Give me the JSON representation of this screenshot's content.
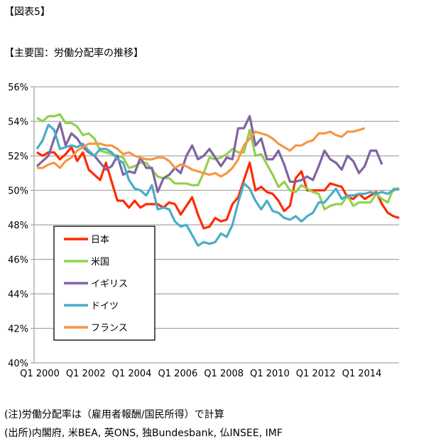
{
  "header": {
    "figure_label": "【図表5】",
    "subtitle": "【主要国：労働分配率の推移】"
  },
  "notes": {
    "note": "(注)労働分配率は（雇用者報酬/国民所得）で計算",
    "source": "(出所)内閣府, 米BEA, 英ONS, 独Bundesbank, 仏INSEE, IMF"
  },
  "chart_data": {
    "type": "line",
    "title": "主要国：労働分配率の推移",
    "xlabel": "",
    "ylabel": "",
    "ylim": [
      40,
      56
    ],
    "yticks": [
      "40%",
      "42%",
      "44%",
      "46%",
      "48%",
      "50%",
      "52%",
      "54%",
      "56%"
    ],
    "xticks": [
      "Q1 2000",
      "Q1 2002",
      "Q1 2004",
      "Q1 2006",
      "Q1 2008",
      "Q1 2010",
      "Q1 2012",
      "Q1 2014"
    ],
    "x_start": "Q1 2000",
    "x_step": "quarter",
    "grid": true,
    "legend_position": "lower-left",
    "series": [
      {
        "name": "日本",
        "color": "#ff2a00",
        "values": [
          52.2,
          52.0,
          52.2,
          52.2,
          51.8,
          52.1,
          52.5,
          51.7,
          52.2,
          51.2,
          50.9,
          50.6,
          51.6,
          50.5,
          49.4,
          49.4,
          49.0,
          49.4,
          49.0,
          49.2,
          49.2,
          49.2,
          49.0,
          49.3,
          49.2,
          48.6,
          49.1,
          49.6,
          48.6,
          47.8,
          47.9,
          48.4,
          48.2,
          48.3,
          49.2,
          49.6,
          50.6,
          51.6,
          50.0,
          50.2,
          49.9,
          49.8,
          49.4,
          48.8,
          49.1,
          50.7,
          51.1,
          50.0,
          50.0,
          50.0,
          50.0,
          50.4,
          50.3,
          50.2,
          49.6,
          49.5,
          49.8,
          49.5,
          49.7,
          49.9,
          49.2,
          48.7,
          48.5,
          48.4
        ]
      },
      {
        "name": "米国",
        "color": "#92d050",
        "values": [
          54.2,
          54.0,
          54.3,
          54.3,
          54.4,
          53.9,
          53.9,
          53.7,
          53.2,
          53.3,
          53.0,
          52.3,
          52.2,
          52.1,
          52.0,
          51.9,
          51.3,
          51.4,
          51.6,
          51.6,
          51.2,
          50.8,
          50.7,
          50.7,
          50.4,
          50.4,
          50.4,
          50.3,
          50.3,
          51.0,
          51.9,
          51.8,
          51.9,
          52.1,
          52.4,
          52.2,
          52.2,
          53.5,
          52.0,
          52.1,
          51.5,
          50.9,
          50.2,
          50.5,
          50.0,
          49.9,
          50.3,
          50.1,
          49.9,
          49.8,
          48.9,
          49.1,
          49.2,
          49.2,
          49.7,
          49.1,
          49.3,
          49.3,
          49.3,
          49.8,
          49.5,
          49.3,
          50.1,
          50.1
        ]
      },
      {
        "name": "イギリス",
        "color": "#8064a2",
        "values": [
          51.4,
          51.7,
          52.0,
          53.0,
          53.9,
          52.6,
          53.3,
          53.0,
          52.5,
          52.2,
          52.0,
          51.6,
          51.2,
          51.4,
          52.0,
          50.9,
          51.1,
          51.0,
          51.9,
          51.3,
          51.3,
          49.9,
          50.7,
          50.9,
          51.3,
          51.0,
          52.0,
          52.6,
          51.8,
          52.0,
          52.4,
          51.9,
          51.4,
          51.9,
          51.8,
          53.6,
          53.6,
          54.3,
          52.6,
          53.0,
          51.8,
          51.8,
          52.3,
          51.5,
          50.5,
          50.5,
          50.6,
          50.8,
          50.6,
          51.4,
          52.3,
          51.8,
          51.6,
          51.2,
          52.0,
          51.7,
          51.0,
          51.4,
          52.3,
          52.3,
          51.5
        ]
      },
      {
        "name": "ドイツ",
        "color": "#4bacc6",
        "values": [
          52.4,
          52.9,
          53.8,
          53.5,
          52.4,
          52.5,
          52.6,
          52.5,
          52.7,
          52.3,
          52.0,
          52.4,
          52.4,
          52.2,
          51.8,
          51.6,
          50.6,
          50.1,
          50.0,
          49.7,
          50.3,
          48.9,
          49.0,
          48.9,
          48.2,
          47.9,
          48.0,
          47.4,
          46.8,
          47.0,
          46.9,
          47.0,
          47.5,
          47.3,
          48.0,
          49.3,
          50.4,
          50.1,
          49.4,
          48.9,
          49.4,
          48.8,
          48.7,
          48.4,
          48.3,
          48.5,
          48.2,
          48.5,
          48.7,
          49.3,
          49.3,
          49.7,
          50.1,
          49.5,
          49.7,
          49.7,
          49.8,
          49.8,
          49.9,
          49.8,
          49.9,
          49.8,
          50.0,
          50.1
        ]
      },
      {
        "name": "フランス",
        "color": "#f79646",
        "values": [
          51.3,
          51.3,
          51.5,
          51.6,
          51.3,
          51.7,
          51.9,
          52.3,
          52.5,
          52.7,
          52.7,
          52.7,
          52.6,
          52.6,
          52.4,
          52.1,
          52.2,
          52.0,
          51.9,
          51.8,
          51.8,
          51.9,
          51.9,
          51.7,
          51.3,
          51.5,
          51.4,
          51.2,
          51.1,
          51.0,
          50.9,
          51.0,
          50.8,
          51.0,
          51.3,
          51.8,
          52.6,
          53.0,
          53.4,
          53.3,
          53.2,
          53.0,
          52.7,
          52.5,
          52.3,
          52.6,
          52.6,
          52.8,
          52.9,
          53.3,
          53.3,
          53.4,
          53.2,
          53.1,
          53.4,
          53.4,
          53.5,
          53.6
        ]
      }
    ]
  }
}
